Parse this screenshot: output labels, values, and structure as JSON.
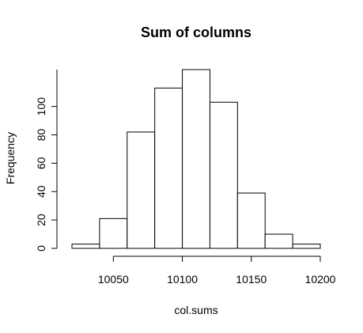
{
  "chart_data": {
    "type": "bar",
    "title": "Sum of columns",
    "xlabel": "col.sums",
    "ylabel": "Frequency",
    "bins": [
      {
        "x0": 10020,
        "x1": 10040,
        "count": 3
      },
      {
        "x0": 10040,
        "x1": 10060,
        "count": 21
      },
      {
        "x0": 10060,
        "x1": 10080,
        "count": 82
      },
      {
        "x0": 10080,
        "x1": 10100,
        "count": 113
      },
      {
        "x0": 10100,
        "x1": 10120,
        "count": 126
      },
      {
        "x0": 10120,
        "x1": 10140,
        "count": 103
      },
      {
        "x0": 10140,
        "x1": 10160,
        "count": 39
      },
      {
        "x0": 10160,
        "x1": 10180,
        "count": 10
      },
      {
        "x0": 10180,
        "x1": 10200,
        "count": 3
      }
    ],
    "xticks": [
      10050,
      10100,
      10150,
      10200
    ],
    "xtick_labels": [
      "10050",
      "10100",
      "10150",
      "10200"
    ],
    "yticks": [
      0,
      20,
      40,
      60,
      80,
      100
    ],
    "ytick_labels": [
      "0",
      "20",
      "40",
      "60",
      "80",
      "100"
    ],
    "xlim": [
      10020,
      10200
    ],
    "ylim": [
      0,
      126
    ],
    "grid": false,
    "colors": {
      "bar_fill": "#ffffff",
      "bar_stroke": "#000000",
      "axis": "#000000"
    }
  }
}
